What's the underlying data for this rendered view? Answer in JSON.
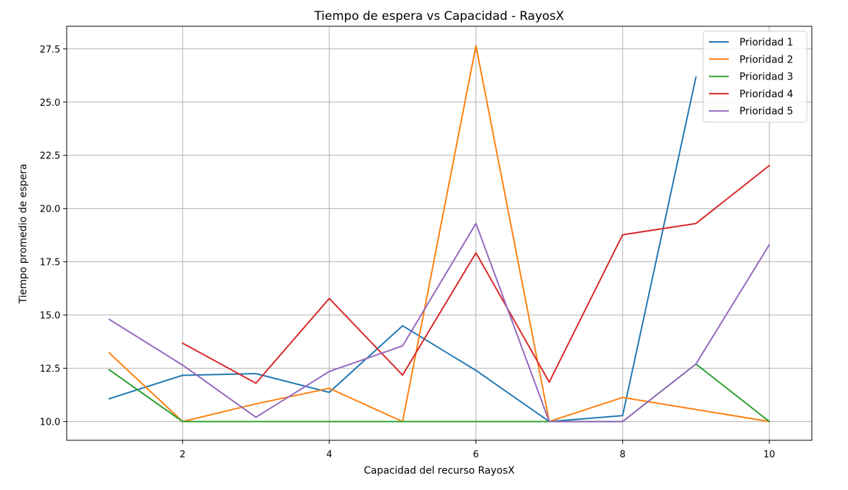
{
  "chart_data": {
    "type": "line",
    "title": "Tiempo de espera vs Capacidad - RayosX",
    "xlabel": "Capacidad del recurso RayosX",
    "ylabel": "Tiempo promedio de espera",
    "xlim": [
      0.42,
      10.58
    ],
    "ylim": [
      9.12,
      28.56
    ],
    "xticks": [
      2,
      4,
      6,
      8,
      10
    ],
    "xtick_labels": [
      "2",
      "4",
      "6",
      "8",
      "10"
    ],
    "yticks": [
      10.0,
      12.5,
      15.0,
      17.5,
      20.0,
      22.5,
      25.0,
      27.5
    ],
    "ytick_labels": [
      "10.0",
      "12.5",
      "15.0",
      "17.5",
      "20.0",
      "22.5",
      "25.0",
      "27.5"
    ],
    "grid": true,
    "legend_position": "upper right",
    "series": [
      {
        "name": "Prioridad 1",
        "color": "#1f77b4",
        "points": [
          [
            1,
            11.07
          ],
          [
            2,
            12.17
          ],
          [
            3,
            12.25
          ],
          [
            4,
            11.37
          ],
          [
            5,
            14.5
          ],
          [
            6,
            12.4
          ],
          [
            7,
            10.0
          ],
          [
            8,
            10.28
          ],
          [
            9,
            26.17
          ]
        ]
      },
      {
        "name": "Prioridad 2",
        "color": "#ff7f0e",
        "points": [
          [
            1,
            13.22
          ],
          [
            2,
            10.0
          ],
          [
            3,
            10.83
          ],
          [
            4,
            11.56
          ],
          [
            5,
            10.0
          ],
          [
            6,
            27.65
          ],
          [
            7,
            10.0
          ],
          [
            8,
            11.13
          ],
          [
            10,
            10.0
          ]
        ]
      },
      {
        "name": "Prioridad 3",
        "color": "#2ca02c",
        "points": [
          [
            1,
            12.43
          ],
          [
            2,
            10.0
          ],
          [
            3,
            10.0
          ],
          [
            4,
            10.0
          ],
          [
            5,
            10.0
          ],
          [
            6,
            10.0
          ],
          [
            7,
            10.0
          ],
          [
            8,
            10.0
          ],
          [
            9,
            12.7
          ],
          [
            10,
            10.0
          ]
        ]
      },
      {
        "name": "Prioridad 4",
        "color": "#d62728",
        "points": [
          [
            2,
            13.68
          ],
          [
            3,
            11.8
          ],
          [
            4,
            15.78
          ],
          [
            5,
            12.18
          ],
          [
            6,
            17.92
          ],
          [
            7,
            11.85
          ],
          [
            8,
            18.77
          ],
          [
            9,
            19.3
          ],
          [
            10,
            22.02
          ]
        ]
      },
      {
        "name": "Prioridad 5",
        "color": "#9467bd",
        "points": [
          [
            1,
            14.8
          ],
          [
            2,
            12.65
          ],
          [
            3,
            10.2
          ],
          [
            4,
            12.35
          ],
          [
            5,
            13.55
          ],
          [
            6,
            19.3
          ],
          [
            7,
            10.0
          ],
          [
            8,
            10.0
          ],
          [
            9,
            12.7
          ],
          [
            10,
            18.3
          ]
        ]
      }
    ]
  }
}
